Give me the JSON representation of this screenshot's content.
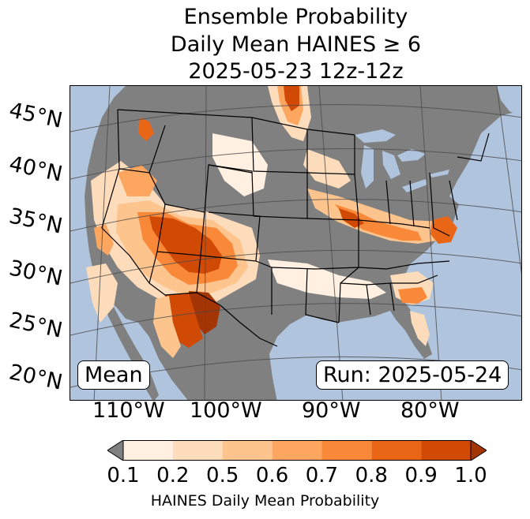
{
  "title": {
    "line1": "Ensemble Probability",
    "line2": "Daily Mean HAINES ≥ 6",
    "line3": "2025-05-23 12z-12z"
  },
  "map": {
    "latitude_labels": [
      "45°N",
      "40°N",
      "35°N",
      "30°N",
      "25°N",
      "20°N"
    ],
    "longitude_labels": [
      "110°W",
      "100°W",
      "90°W",
      "80°W"
    ],
    "stat_label": "Mean",
    "run_label": "Run: 2025-05-24",
    "colors": {
      "ocean": "#b0c4de",
      "land_no_data": "#808080",
      "borders": "#000000",
      "graticule": "#4a4a4a"
    }
  },
  "colorbar": {
    "label": "HAINES Daily Mean Probability",
    "tick_labels": [
      "0.1",
      "0.2",
      "0.5",
      "0.6",
      "0.7",
      "0.8",
      "0.9",
      "1.0"
    ],
    "bins": [
      {
        "from": 0.1,
        "to": 0.2,
        "color": "#fff0e2"
      },
      {
        "from": 0.2,
        "to": 0.5,
        "color": "#fddcbb"
      },
      {
        "from": 0.5,
        "to": 0.6,
        "color": "#fdc48e"
      },
      {
        "from": 0.6,
        "to": 0.7,
        "color": "#fda660"
      },
      {
        "from": 0.7,
        "to": 0.8,
        "color": "#f98838"
      },
      {
        "from": 0.8,
        "to": 0.9,
        "color": "#ea6617"
      },
      {
        "from": 0.9,
        "to": 1.0,
        "color": "#d04a06"
      }
    ],
    "under_color": "#808080",
    "over_color": "#a33403"
  }
}
